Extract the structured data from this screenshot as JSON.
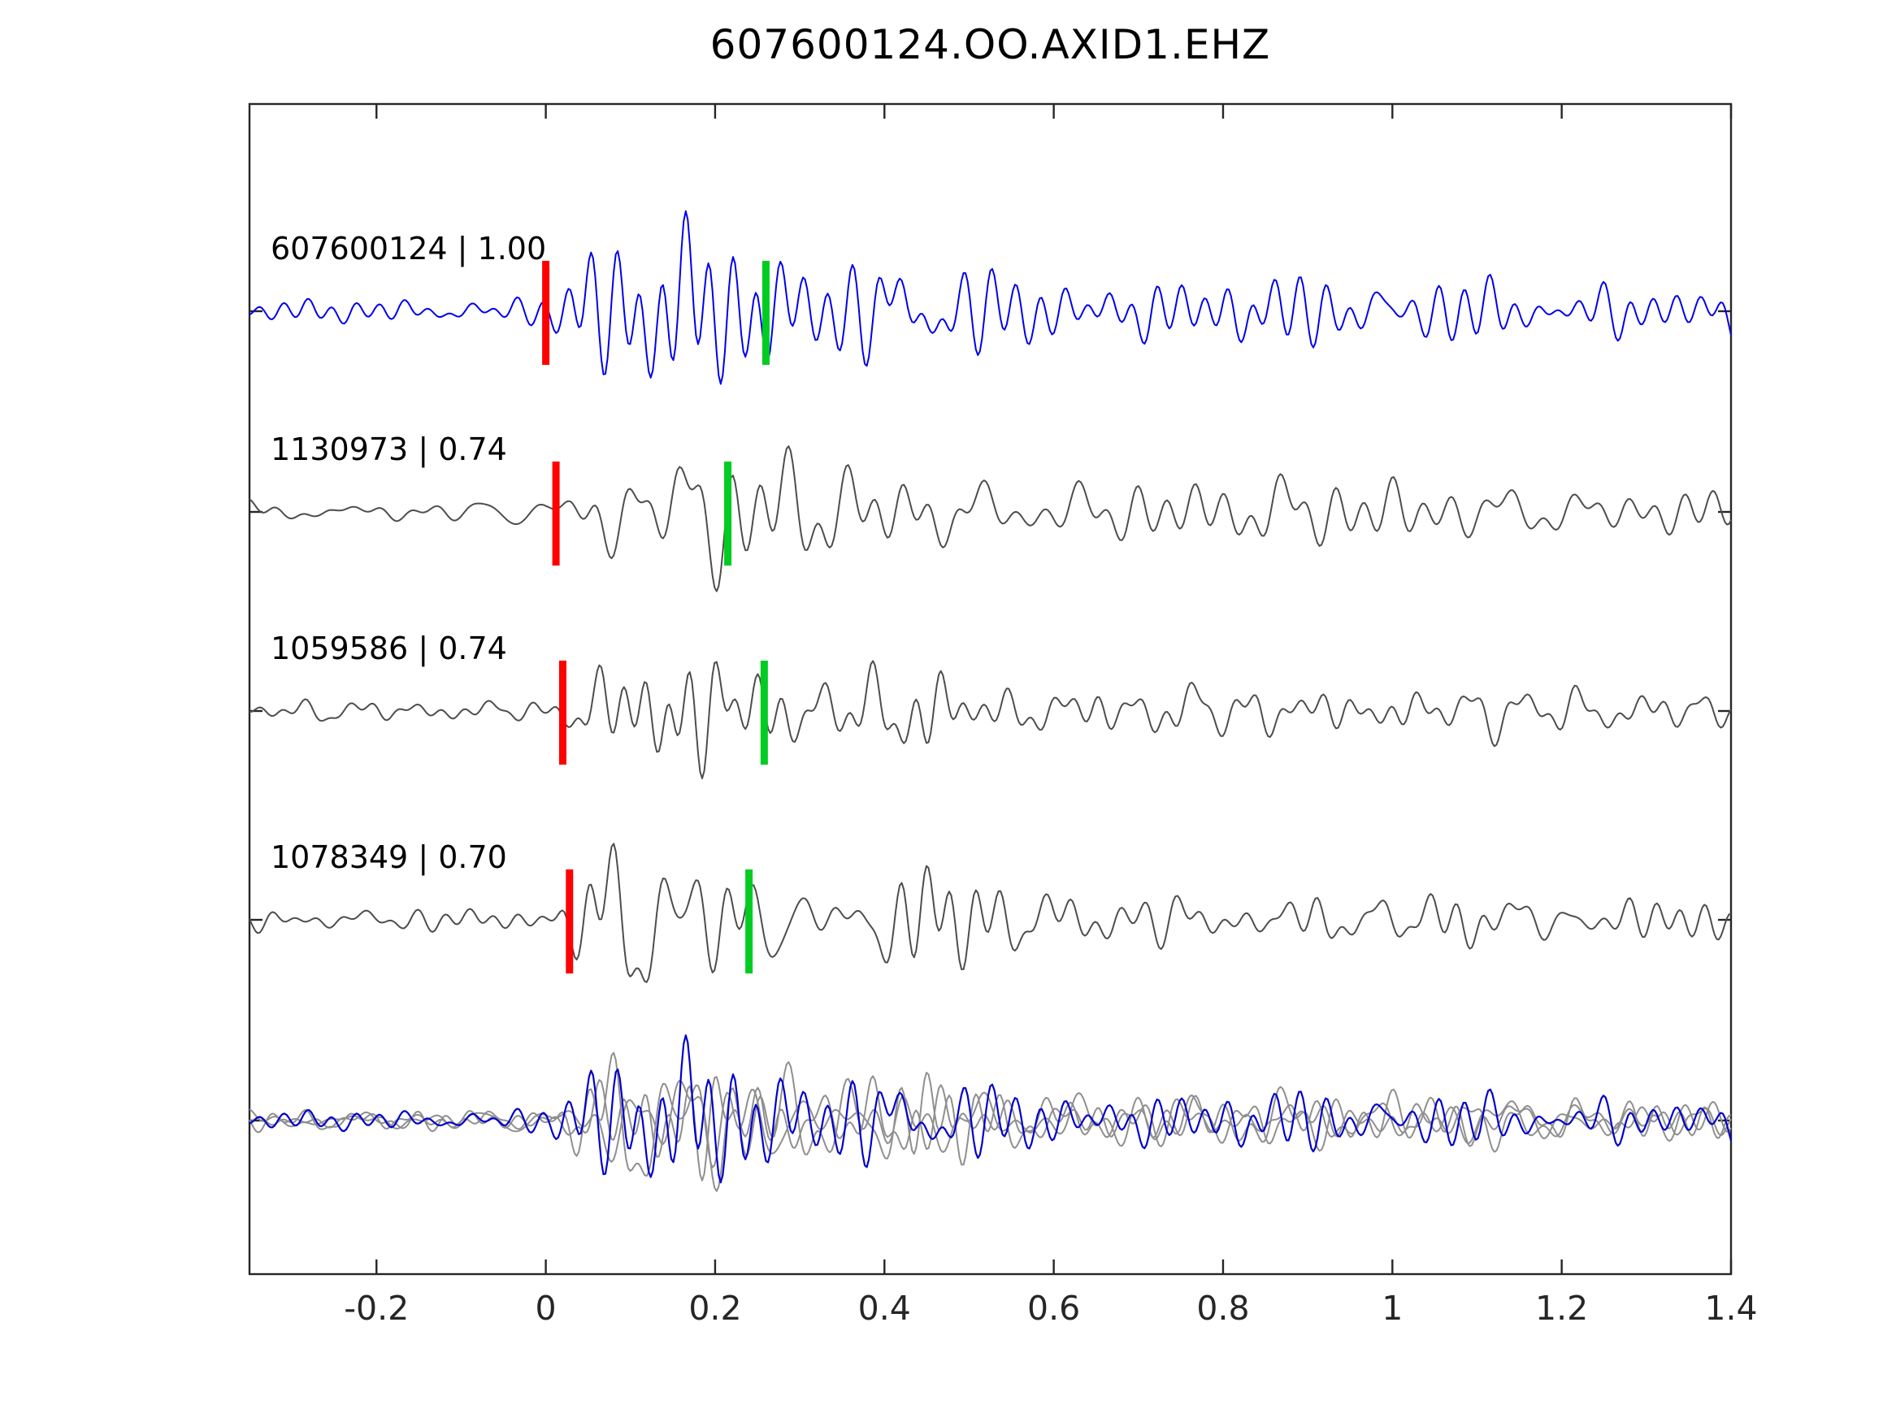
{
  "chart_data": {
    "type": "line",
    "title": "607600124.OO.AXID1.EHZ",
    "xlabel": "",
    "ylabel": "",
    "x_range": [
      -0.35,
      1.4
    ],
    "x_ticks": [
      -0.2,
      0,
      0.2,
      0.4,
      0.6,
      0.8,
      1,
      1.2,
      1.4
    ],
    "x_tick_labels": [
      "-0.2",
      "0",
      "0.2",
      "0.4",
      "0.6",
      "0.8",
      "1",
      "1.2",
      "1.4"
    ],
    "grid": false,
    "legend": false,
    "colors": {
      "template_trace": "#0000ee",
      "match_trace": "#4d4d4d",
      "overlay_gray": "#8f8f8f",
      "overlay_blue": "#0000cc",
      "pick_red": "#ff0000",
      "pick_green": "#00cc22",
      "axis": "#262626"
    },
    "traces": [
      {
        "id": "607600124",
        "correlation": "1.00",
        "label": "607600124 | 1.00",
        "color_role": "template_trace",
        "pick_red": 0.0,
        "pick_green": 0.26
      },
      {
        "id": "1130973",
        "correlation": "0.74",
        "label": "1130973 | 0.74",
        "color_role": "match_trace",
        "pick_red": 0.012,
        "pick_green": 0.215
      },
      {
        "id": "1059586",
        "correlation": "0.74",
        "label": "1059586 | 0.74",
        "color_role": "match_trace",
        "pick_red": 0.02,
        "pick_green": 0.258
      },
      {
        "id": "1078349",
        "correlation": "0.70",
        "label": "1078349 | 0.70",
        "color_role": "match_trace",
        "pick_red": 0.028,
        "pick_green": 0.24
      }
    ],
    "overlay_row": {
      "description": "all matched traces overlaid in gray with template trace in blue",
      "gray_members": [
        "1130973",
        "1059586",
        "1078349"
      ],
      "blue_member": "607600124"
    }
  }
}
